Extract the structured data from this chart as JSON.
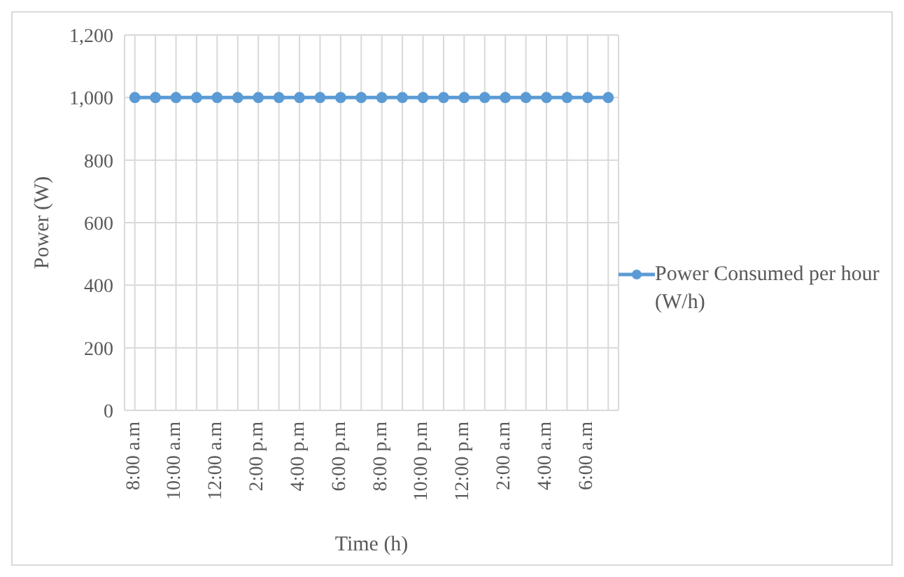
{
  "chart_data": {
    "type": "line",
    "xlabel": "Time (h)",
    "ylabel": "Power (W)",
    "categories": [
      "8:00 a.m",
      null,
      "10:00 a.m",
      null,
      "12:00 a.m",
      null,
      "2:00 p.m",
      null,
      "4:00 p.m",
      null,
      "6:00 p.m",
      null,
      "8:00 p.m",
      null,
      "10:00 p.m",
      null,
      "12:00 p.m",
      null,
      "2:00 a.m",
      null,
      "4:00 a.m",
      null,
      "6:00 a.m",
      null
    ],
    "series": [
      {
        "name": "Power Consumed per hour (W/h)",
        "color": "#5b9bd5",
        "values": [
          1000,
          1000,
          1000,
          1000,
          1000,
          1000,
          1000,
          1000,
          1000,
          1000,
          1000,
          1000,
          1000,
          1000,
          1000,
          1000,
          1000,
          1000,
          1000,
          1000,
          1000,
          1000,
          1000,
          1000
        ]
      }
    ],
    "ylim": [
      0,
      1200
    ],
    "yticks": [
      0,
      200,
      400,
      600,
      800,
      {
        "value": 1000,
        "label": "1,000"
      },
      {
        "value": 1200,
        "label": "1,200"
      }
    ],
    "grid": true,
    "legend": "right",
    "marker": "circle",
    "line_style": "solid"
  }
}
